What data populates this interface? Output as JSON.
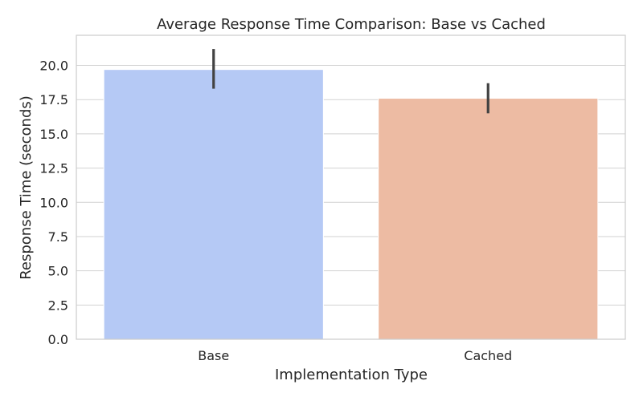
{
  "chart_data": {
    "type": "bar",
    "title": "Average Response Time Comparison: Base vs Cached",
    "xlabel": "Implementation Type",
    "ylabel": "Response Time (seconds)",
    "categories": [
      "Base",
      "Cached"
    ],
    "values": [
      19.7,
      17.6
    ],
    "error_bars": [
      {
        "low": 18.3,
        "high": 21.2
      },
      {
        "low": 16.5,
        "high": 18.7
      }
    ],
    "ylim": [
      0,
      22.2
    ],
    "yticks": [
      0,
      2.5,
      5,
      7.5,
      10,
      12.5,
      15,
      17.5,
      20
    ],
    "ytick_labels": [
      "0.0",
      "2.5",
      "5.0",
      "7.5",
      "10.0",
      "12.5",
      "15.0",
      "17.5",
      "20.0"
    ],
    "grid": true,
    "colors": {
      "bars": [
        "#b5c9f5",
        "#edbba3"
      ],
      "error": "#424242",
      "grid": "#d2d2d2",
      "axis": "#cccccc"
    }
  }
}
